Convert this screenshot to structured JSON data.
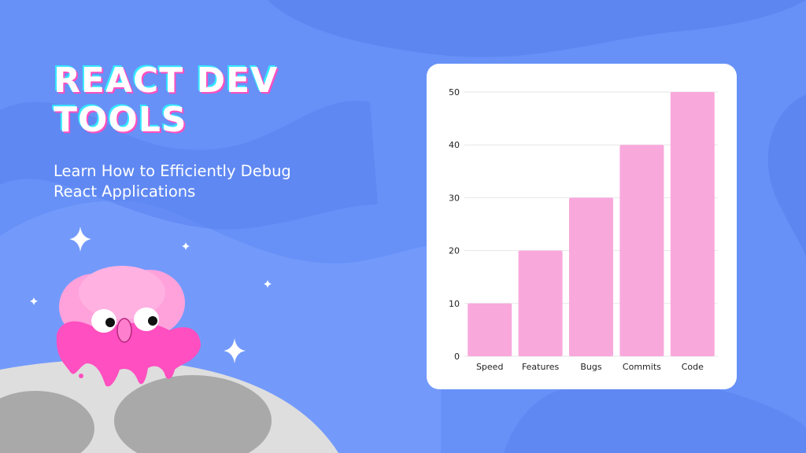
{
  "title": "REACT DEV TOOLS",
  "subtitle": "Learn How to Efficiently Debug React Applications",
  "colors": {
    "background": "#6791f7",
    "bar": "#f9a8dc",
    "title_shadow_pink": "#ff4fc0",
    "title_shadow_cyan": "#35e8ff",
    "mascot": "#ff5fc4"
  },
  "chart_data": {
    "type": "bar",
    "categories": [
      "Speed",
      "Features",
      "Bugs",
      "Commits",
      "Code"
    ],
    "values": [
      10,
      20,
      30,
      40,
      50
    ],
    "y_ticks": [
      0,
      10,
      20,
      30,
      40,
      50
    ],
    "ylim": [
      0,
      50
    ],
    "grid": true
  },
  "decorations": {
    "icons": [
      "sparkle-icon",
      "pink-blob-mascot",
      "moon-surface"
    ]
  }
}
